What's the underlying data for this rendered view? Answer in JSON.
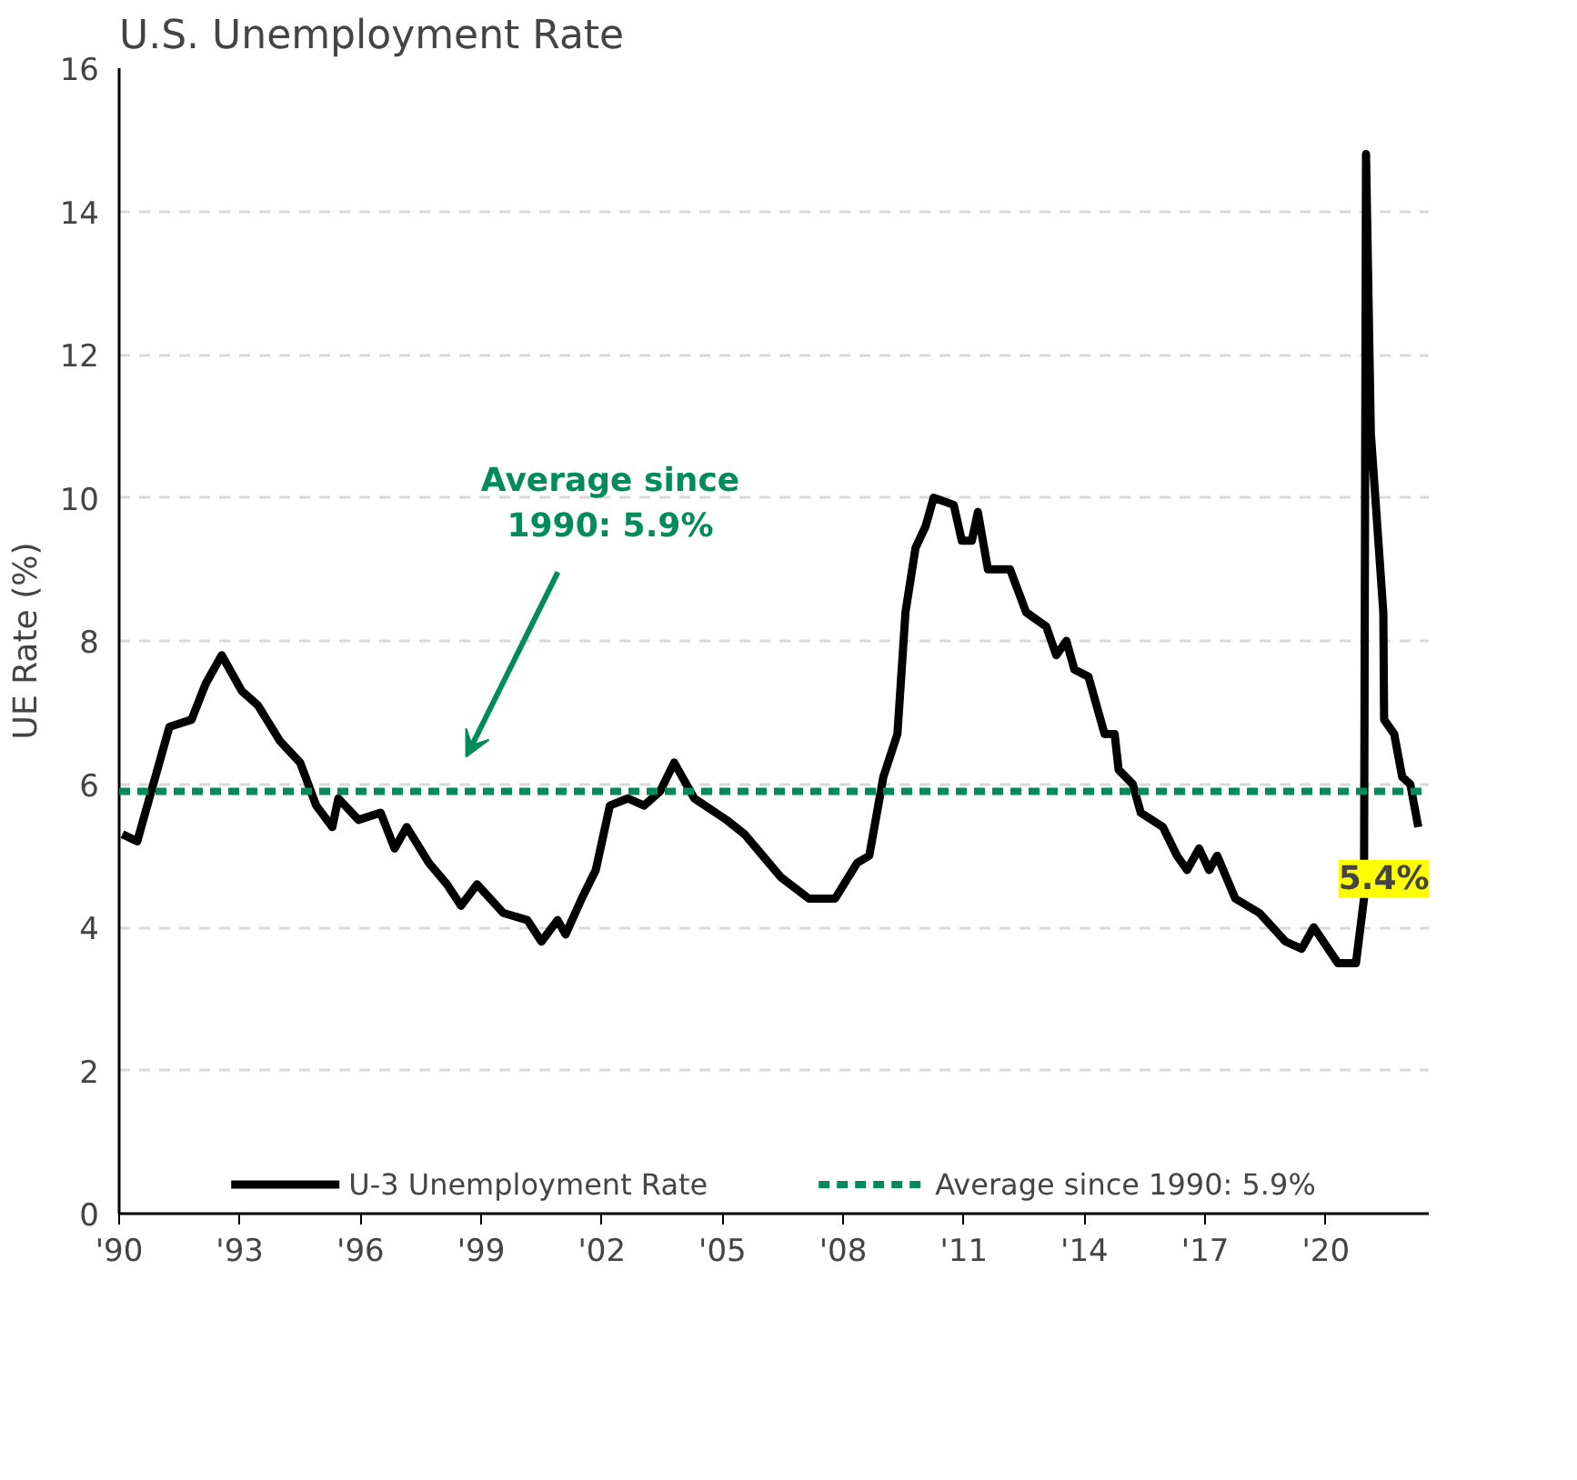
{
  "chart_data": {
    "type": "line",
    "title": "U.S. Unemployment Rate",
    "ylabel": "UE Rate (%)",
    "x": [
      1990.08,
      1990.45,
      1990.9,
      1991.25,
      1991.8,
      1992.15,
      1992.55,
      1993.05,
      1993.45,
      1994.0,
      1994.5,
      1994.9,
      1995.3,
      1995.45,
      1995.95,
      1996.5,
      1996.85,
      1997.15,
      1997.7,
      1998.15,
      1998.5,
      1998.9,
      1999.55,
      2000.15,
      2000.5,
      2000.9,
      2001.1,
      2001.5,
      2001.85,
      2002.2,
      2002.65,
      2003.05,
      2003.45,
      2003.8,
      2004.3,
      2005.1,
      2005.55,
      2006.0,
      2006.45,
      2007.15,
      2007.8,
      2008.35,
      2008.65,
      2009.0,
      2009.35,
      2009.55,
      2009.8,
      2010.05,
      2010.25,
      2010.75,
      2010.95,
      2011.2,
      2011.35,
      2011.6,
      2012.15,
      2012.55,
      2013.05,
      2013.3,
      2013.55,
      2013.75,
      2014.1,
      2014.5,
      2014.75,
      2014.85,
      2015.2,
      2015.4,
      2015.95,
      2016.3,
      2016.55,
      2016.85,
      2017.1,
      2017.3,
      2017.75,
      2018.35,
      2019.0,
      2019.4,
      2019.7,
      2020.3,
      2020.75,
      2020.95,
      2021.0,
      2021.12,
      2021.43,
      2021.45,
      2021.7,
      2021.9,
      2022.1,
      2022.3
    ],
    "series": [
      {
        "name": "U-3 Unemployment Rate",
        "color": "#000000",
        "values": [
          5.3,
          5.2,
          6.1,
          6.8,
          6.9,
          7.4,
          7.8,
          7.3,
          7.1,
          6.6,
          6.3,
          5.7,
          5.4,
          5.8,
          5.5,
          5.6,
          5.1,
          5.4,
          4.9,
          4.6,
          4.3,
          4.6,
          4.2,
          4.1,
          3.8,
          4.1,
          3.9,
          4.4,
          4.8,
          5.7,
          5.8,
          5.7,
          5.9,
          6.3,
          5.8,
          5.5,
          5.3,
          5.0,
          4.7,
          4.4,
          4.4,
          4.9,
          5.0,
          6.1,
          6.7,
          8.4,
          9.3,
          9.6,
          10.0,
          9.9,
          9.4,
          9.4,
          9.8,
          9.0,
          9.0,
          8.4,
          8.2,
          7.8,
          8.0,
          7.6,
          7.5,
          6.7,
          6.7,
          6.2,
          6.0,
          5.6,
          5.4,
          5.0,
          4.8,
          5.1,
          4.8,
          5.0,
          4.4,
          4.2,
          3.8,
          3.7,
          4.0,
          3.5,
          3.5,
          4.4,
          14.8,
          10.9,
          8.4,
          6.9,
          6.7,
          6.1,
          6.0,
          5.4
        ]
      }
    ],
    "xlim": [
      1990,
      2022.56
    ],
    "xticks": [
      {
        "value": 1990,
        "label": "'90"
      },
      {
        "value": 1993,
        "label": "'93"
      },
      {
        "value": 1996,
        "label": "'96"
      },
      {
        "value": 1999,
        "label": "'99"
      },
      {
        "value": 2002,
        "label": "'02"
      },
      {
        "value": 2005,
        "label": "'05"
      },
      {
        "value": 2008,
        "label": "'08"
      },
      {
        "value": 2011,
        "label": "'11"
      },
      {
        "value": 2014,
        "label": "'14"
      },
      {
        "value": 2017,
        "label": "'17"
      },
      {
        "value": 2020,
        "label": "'20"
      }
    ],
    "ylim": [
      0,
      16
    ],
    "yticks": [
      0,
      2,
      4,
      6,
      8,
      10,
      12,
      14,
      16
    ],
    "ref_lines": [
      {
        "axis": "y",
        "value": 5.9,
        "label": "Average since 1990: 5.9%",
        "color": "#008c5a",
        "line_style": "dashed"
      }
    ],
    "annotations": [
      "Average since 1990: 5.9%",
      {
        "text": "5.4%",
        "x": 2022.3,
        "y": 5.4
      }
    ],
    "grid": "y",
    "legend": "bottom",
    "marker": "none",
    "line_style": "solid"
  }
}
